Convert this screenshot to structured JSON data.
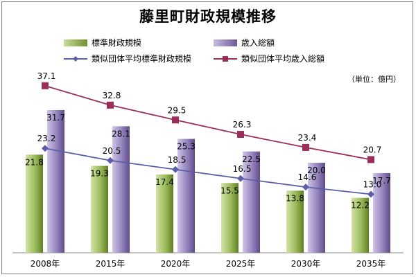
{
  "chart_data": {
    "type": "bar",
    "title": "藤里町財政規模推移",
    "unit": "（単位：億円）",
    "categories": [
      "2008年",
      "2015年",
      "2020年",
      "2025年",
      "2030年",
      "2035年"
    ],
    "ylim": [
      0,
      45
    ],
    "grid": false,
    "legend_position": "top",
    "series": [
      {
        "name": "標準財政規模",
        "kind": "bar",
        "color": "#8fb04a",
        "values": [
          21.8,
          19.3,
          17.4,
          15.5,
          13.8,
          12.2
        ]
      },
      {
        "name": "歳入総額",
        "kind": "bar",
        "color": "#8e7bb0",
        "values": [
          31.7,
          28.1,
          25.3,
          22.5,
          20.0,
          17.7
        ]
      },
      {
        "name": "類似団体平均標準財政規模",
        "kind": "line",
        "color": "#5b5ea6",
        "marker": "diamond",
        "values": [
          23.2,
          20.5,
          18.5,
          16.5,
          14.6,
          13.0
        ]
      },
      {
        "name": "類似団体平均歳入総額",
        "kind": "line",
        "color": "#9b2d5a",
        "marker": "square",
        "values": [
          37.1,
          32.8,
          29.5,
          26.3,
          23.4,
          20.7
        ]
      }
    ],
    "value_labels": {
      "bar0": [
        "21.8",
        "19.3",
        "17.4",
        "15.5",
        "13.8",
        "12.2"
      ],
      "bar1": [
        "31.7",
        "28.1",
        "25.3",
        "22.5",
        "20.0",
        "17.7"
      ],
      "line0": [
        "23.2",
        "20.5",
        "18.5",
        "16.5",
        "14.6",
        "13.0"
      ],
      "line1": [
        "37.1",
        "32.8",
        "29.5",
        "26.3",
        "23.4",
        "20.7"
      ]
    }
  }
}
